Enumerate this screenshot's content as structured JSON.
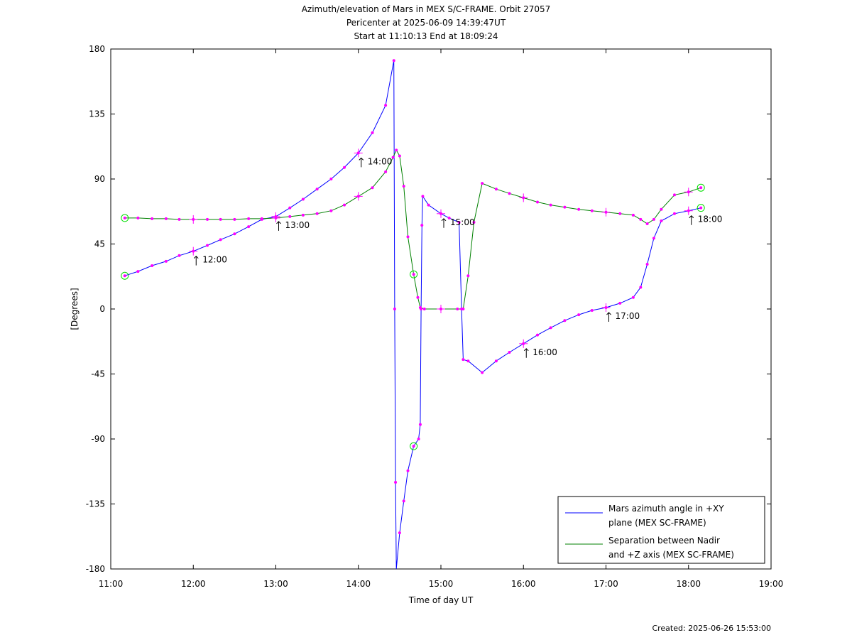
{
  "title": {
    "line1": "Azimuth/elevation of Mars in MEX S/C-FRAME.  Orbit 27057",
    "line2": "Pericenter at 2025-06-09 14:39:47UT",
    "line3": "Start at 11:10:13 End at 18:09:24"
  },
  "created": "Created: 2025-06-26 15:53:00",
  "chart_data": {
    "type": "line",
    "xlabel": "Time of day UT",
    "ylabel": "[Degrees]",
    "xlim": [
      11,
      19
    ],
    "ylim": [
      -180,
      180
    ],
    "xticks": [
      11,
      12,
      13,
      14,
      15,
      16,
      17,
      18,
      19
    ],
    "xtick_labels": [
      "11:00",
      "12:00",
      "13:00",
      "14:00",
      "15:00",
      "16:00",
      "17:00",
      "18:00",
      "19:00"
    ],
    "yticks": [
      180,
      135,
      90,
      45,
      0,
      -45,
      -90,
      -135,
      -180
    ],
    "ytick_labels": [
      "180",
      "135",
      "90",
      "45",
      "0",
      "-45",
      "-90",
      "-135",
      "-180"
    ],
    "grid": false,
    "legend_position": "bottom-right",
    "series": [
      {
        "name": "Mars azimuth angle in +XY plane (MEX SC-FRAME)",
        "legend_lines": [
          "Mars azimuth angle in +XY",
          "plane (MEX SC-FRAME)"
        ],
        "color": "#0000ff",
        "points": [
          [
            11.17,
            23
          ],
          [
            11.33,
            26
          ],
          [
            11.5,
            30
          ],
          [
            11.67,
            33
          ],
          [
            11.83,
            37
          ],
          [
            12.0,
            40
          ],
          [
            12.17,
            44
          ],
          [
            12.33,
            48
          ],
          [
            12.5,
            52
          ],
          [
            12.67,
            57
          ],
          [
            12.83,
            62
          ],
          [
            13.0,
            64
          ],
          [
            13.17,
            70
          ],
          [
            13.33,
            76
          ],
          [
            13.5,
            83
          ],
          [
            13.67,
            90
          ],
          [
            13.83,
            98
          ],
          [
            14.0,
            108
          ],
          [
            14.17,
            122
          ],
          [
            14.33,
            141
          ],
          [
            14.43,
            172
          ],
          [
            14.44,
            0
          ],
          [
            14.45,
            -120
          ],
          [
            14.46,
            -180
          ],
          [
            14.5,
            -155
          ],
          [
            14.55,
            -133
          ],
          [
            14.6,
            -112
          ],
          [
            14.67,
            -95
          ],
          [
            14.73,
            -90
          ],
          [
            14.75,
            -80
          ],
          [
            14.76,
            0
          ],
          [
            14.77,
            58
          ],
          [
            14.78,
            78
          ],
          [
            14.85,
            72
          ],
          [
            15.0,
            66
          ],
          [
            15.1,
            63
          ],
          [
            15.22,
            60
          ],
          [
            15.25,
            0
          ],
          [
            15.27,
            -35
          ],
          [
            15.33,
            -36
          ],
          [
            15.5,
            -44
          ],
          [
            15.67,
            -36
          ],
          [
            15.83,
            -30
          ],
          [
            16.0,
            -24
          ],
          [
            16.17,
            -18
          ],
          [
            16.33,
            -13
          ],
          [
            16.5,
            -8
          ],
          [
            16.67,
            -4
          ],
          [
            16.83,
            -1
          ],
          [
            17.0,
            1
          ],
          [
            17.17,
            4
          ],
          [
            17.33,
            8
          ],
          [
            17.42,
            15
          ],
          [
            17.5,
            31
          ],
          [
            17.58,
            49
          ],
          [
            17.67,
            61
          ],
          [
            17.83,
            66
          ],
          [
            18.0,
            68
          ],
          [
            18.15,
            70
          ]
        ]
      },
      {
        "name": "Separation between Nadir and +Z axis (MEX SC-FRAME)",
        "legend_lines": [
          "Separation between Nadir",
          "and +Z axis (MEX SC-FRAME)"
        ],
        "color": "#008000",
        "points": [
          [
            11.17,
            63
          ],
          [
            11.33,
            63
          ],
          [
            11.5,
            62.5
          ],
          [
            11.67,
            62.5
          ],
          [
            11.83,
            62
          ],
          [
            12.0,
            62
          ],
          [
            12.17,
            62
          ],
          [
            12.33,
            62
          ],
          [
            12.5,
            62
          ],
          [
            12.67,
            62.5
          ],
          [
            12.83,
            62.5
          ],
          [
            13.0,
            63
          ],
          [
            13.17,
            64
          ],
          [
            13.33,
            65
          ],
          [
            13.5,
            66
          ],
          [
            13.67,
            68
          ],
          [
            13.83,
            72
          ],
          [
            14.0,
            78
          ],
          [
            14.17,
            84
          ],
          [
            14.33,
            95
          ],
          [
            14.42,
            105
          ],
          [
            14.46,
            110
          ],
          [
            14.5,
            106
          ],
          [
            14.55,
            85
          ],
          [
            14.6,
            50
          ],
          [
            14.67,
            24
          ],
          [
            14.72,
            8
          ],
          [
            14.75,
            1
          ],
          [
            14.8,
            0
          ],
          [
            15.0,
            0
          ],
          [
            15.2,
            0
          ],
          [
            15.27,
            0
          ],
          [
            15.33,
            23
          ],
          [
            15.4,
            60
          ],
          [
            15.5,
            87
          ],
          [
            15.67,
            83
          ],
          [
            15.83,
            80
          ],
          [
            16.0,
            77
          ],
          [
            16.17,
            74
          ],
          [
            16.33,
            72
          ],
          [
            16.5,
            70.5
          ],
          [
            16.67,
            69
          ],
          [
            16.83,
            68
          ],
          [
            17.0,
            67
          ],
          [
            17.17,
            66
          ],
          [
            17.33,
            65
          ],
          [
            17.42,
            62
          ],
          [
            17.5,
            59
          ],
          [
            17.58,
            62
          ],
          [
            17.67,
            69
          ],
          [
            17.83,
            79
          ],
          [
            18.0,
            81
          ],
          [
            18.15,
            84
          ]
        ]
      }
    ],
    "hour_labels": [
      {
        "text": "12:00",
        "x": 12.0,
        "y": 40
      },
      {
        "text": "13:00",
        "x": 13.0,
        "y": 64
      },
      {
        "text": "14:00",
        "x": 14.0,
        "y": 108
      },
      {
        "text": "15:00",
        "x": 15.0,
        "y": 66
      },
      {
        "text": "16:00",
        "x": 16.0,
        "y": -24
      },
      {
        "text": "17:00",
        "x": 17.0,
        "y": 1
      },
      {
        "text": "18:00",
        "x": 18.0,
        "y": 68
      }
    ],
    "hour_crosses": [
      [
        12.0,
        40
      ],
      [
        12.0,
        62
      ],
      [
        13.0,
        64
      ],
      [
        13.0,
        63
      ],
      [
        14.0,
        108
      ],
      [
        14.0,
        78
      ],
      [
        15.0,
        66
      ],
      [
        15.0,
        0
      ],
      [
        16.0,
        -24
      ],
      [
        16.0,
        77
      ],
      [
        17.0,
        1
      ],
      [
        17.0,
        67
      ],
      [
        18.0,
        68
      ],
      [
        18.0,
        81
      ]
    ],
    "endpoint_circles": [
      [
        11.17,
        63
      ],
      [
        11.17,
        23
      ],
      [
        14.67,
        24
      ],
      [
        14.67,
        -95
      ],
      [
        18.15,
        84
      ],
      [
        18.15,
        70
      ]
    ],
    "marker_color": "#ff00ff",
    "circle_color": "#00dd00"
  }
}
